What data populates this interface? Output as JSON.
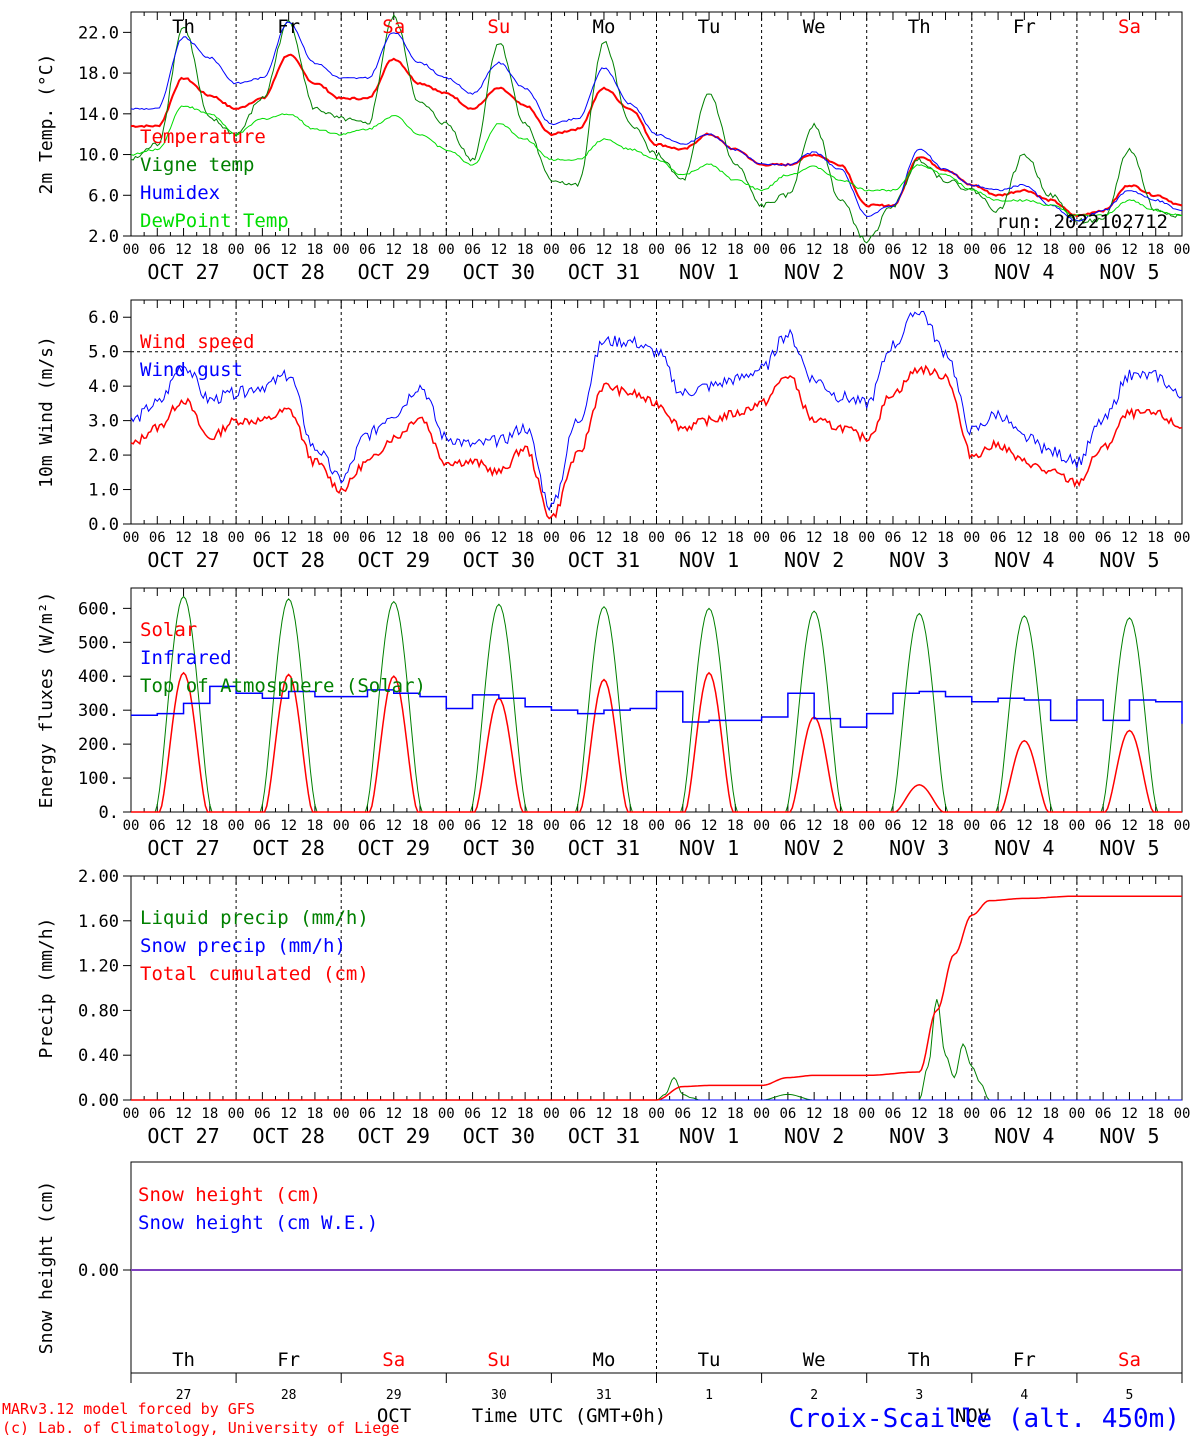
{
  "chart_data": [
    {
      "type": "line",
      "ylabel": "2m Temp. (°C)",
      "ylim": [
        2.0,
        24.0
      ],
      "yticks": [
        "2.0",
        "6.0",
        "10.0",
        "14.0",
        "18.0",
        "22.0"
      ],
      "x_hours": [
        0,
        6,
        12,
        18,
        24,
        30,
        36,
        42,
        48,
        54,
        60,
        66,
        72,
        78,
        84,
        90,
        96,
        102,
        108,
        114,
        120,
        126,
        132,
        138,
        144,
        150,
        156,
        162,
        168,
        174,
        180,
        186,
        192,
        198,
        204,
        210,
        216,
        222,
        228,
        234,
        240
      ],
      "series": [
        {
          "name": "Temperature",
          "color": "#ff0000",
          "values": [
            12.8,
            12.8,
            17.5,
            15.8,
            14.5,
            15.5,
            19.8,
            17.0,
            15.5,
            15.5,
            19.4,
            17.0,
            16.0,
            14.5,
            16.5,
            14.8,
            12.0,
            12.5,
            16.5,
            14.5,
            11.0,
            10.5,
            12.0,
            10.5,
            9.0,
            9.0,
            10.0,
            9.0,
            5.0,
            5.0,
            9.8,
            8.5,
            7.0,
            6.0,
            6.5,
            5.5,
            4.0,
            4.5,
            7.0,
            6.0,
            5.0
          ]
        },
        {
          "name": "Vigne temp",
          "color": "#008000",
          "values": [
            9.5,
            11.0,
            22.5,
            13.5,
            12.0,
            15.5,
            23.0,
            14.5,
            13.5,
            13.0,
            23.5,
            15.0,
            13.0,
            9.5,
            21.0,
            13.0,
            7.5,
            7.0,
            21.0,
            13.0,
            10.0,
            7.5,
            16.0,
            9.0,
            5.0,
            6.0,
            13.0,
            5.5,
            1.5,
            5.0,
            9.5,
            7.5,
            6.5,
            4.5,
            10.0,
            6.0,
            3.5,
            3.5,
            10.5,
            4.5,
            4.0
          ]
        },
        {
          "name": "Humidex",
          "color": "#0000ff",
          "values": [
            14.5,
            14.5,
            21.5,
            19.5,
            17.0,
            17.5,
            23.0,
            19.0,
            17.5,
            17.5,
            22.0,
            19.0,
            17.5,
            16.0,
            19.0,
            16.5,
            13.0,
            13.5,
            18.5,
            15.0,
            12.0,
            11.0,
            12.0,
            10.5,
            9.0,
            9.0,
            10.2,
            8.5,
            4.0,
            5.0,
            10.5,
            8.5,
            7.0,
            6.5,
            7.0,
            5.0,
            3.5,
            4.5,
            6.5,
            5.5,
            4.5
          ]
        },
        {
          "name": "DewPoint Temp",
          "color": "#00dd00",
          "values": [
            10.0,
            10.5,
            14.8,
            14.0,
            12.0,
            13.5,
            14.0,
            12.5,
            12.0,
            12.5,
            13.8,
            12.0,
            10.5,
            9.0,
            13.0,
            11.5,
            9.5,
            9.5,
            11.5,
            10.5,
            9.5,
            8.0,
            9.0,
            7.5,
            6.5,
            8.0,
            8.8,
            7.5,
            6.5,
            6.5,
            9.0,
            8.0,
            6.5,
            5.5,
            5.5,
            5.0,
            4.0,
            4.0,
            5.5,
            4.5,
            4.0
          ]
        }
      ],
      "legend": [
        "Temperature",
        "Vigne temp",
        "Humidex",
        "DewPoint Temp"
      ],
      "annotation": "run: 2022102712"
    },
    {
      "type": "line",
      "ylabel": "10m Wind (m/s)",
      "ylim": [
        0.0,
        6.5
      ],
      "yticks": [
        "0.0",
        "1.0",
        "2.0",
        "3.0",
        "4.0",
        "5.0",
        "6.0"
      ],
      "reference_line": 5.0,
      "x_hours": [
        0,
        6,
        12,
        18,
        24,
        30,
        36,
        42,
        48,
        54,
        60,
        66,
        72,
        78,
        84,
        90,
        96,
        102,
        108,
        114,
        120,
        126,
        132,
        138,
        144,
        150,
        156,
        162,
        168,
        174,
        180,
        186,
        192,
        198,
        204,
        210,
        216,
        222,
        228,
        234,
        240
      ],
      "series": [
        {
          "name": "Wind speed",
          "color": "#ff0000",
          "values": [
            2.3,
            2.8,
            3.6,
            2.5,
            3.0,
            3.0,
            3.3,
            1.8,
            1.0,
            1.8,
            2.5,
            3.1,
            1.8,
            1.8,
            1.5,
            2.2,
            0.2,
            2.0,
            4.0,
            3.8,
            3.5,
            2.8,
            3.0,
            3.2,
            3.5,
            4.3,
            3.0,
            2.8,
            2.5,
            3.8,
            4.5,
            4.3,
            2.0,
            2.3,
            1.8,
            1.5,
            1.2,
            2.2,
            3.2,
            3.2,
            2.8
          ]
        },
        {
          "name": "Wind gust",
          "color": "#0000ff",
          "values": [
            3.0,
            3.5,
            4.6,
            3.6,
            3.8,
            4.0,
            4.3,
            2.2,
            1.3,
            2.6,
            3.2,
            4.0,
            2.5,
            2.3,
            2.4,
            2.8,
            0.5,
            3.0,
            5.3,
            5.3,
            5.0,
            3.8,
            4.0,
            4.2,
            4.5,
            5.5,
            4.2,
            3.7,
            3.5,
            5.2,
            6.2,
            5.0,
            2.7,
            3.2,
            2.5,
            2.1,
            1.8,
            3.0,
            4.3,
            4.3,
            3.7
          ]
        }
      ],
      "legend": [
        "Wind speed",
        "Wind gust"
      ]
    },
    {
      "type": "line",
      "ylabel": "Energy fluxes (W/m²)",
      "ylim": [
        0,
        660
      ],
      "yticks": [
        "0.",
        "100.",
        "200.",
        "300.",
        "400.",
        "500.",
        "600."
      ],
      "series": [
        {
          "name": "Solar",
          "color": "#ff0000",
          "daily_peak_hour": 12,
          "daily_peaks": [
            410,
            405,
            400,
            335,
            390,
            410,
            280,
            80,
            210,
            240
          ]
        },
        {
          "name": "Top of Atmosphere (Solar)",
          "color": "#008000",
          "daily_peak_hour": 12,
          "daily_peaks": [
            635,
            628,
            620,
            612,
            605,
            600,
            592,
            585,
            578,
            572
          ]
        },
        {
          "name": "Infrared",
          "color": "#0000ff",
          "x_hours": [
            0,
            6,
            12,
            18,
            24,
            30,
            36,
            42,
            48,
            54,
            60,
            66,
            72,
            78,
            84,
            90,
            96,
            102,
            108,
            114,
            120,
            126,
            132,
            138,
            144,
            150,
            156,
            162,
            168,
            174,
            180,
            186,
            192,
            198,
            204,
            210,
            216,
            222,
            228,
            234,
            240
          ],
          "values": [
            285,
            290,
            320,
            370,
            350,
            335,
            355,
            340,
            340,
            360,
            350,
            340,
            305,
            345,
            335,
            310,
            300,
            290,
            300,
            305,
            355,
            265,
            270,
            270,
            280,
            350,
            275,
            250,
            290,
            350,
            355,
            340,
            325,
            335,
            330,
            270,
            330,
            270,
            330,
            325,
            260
          ]
        }
      ],
      "legend": [
        "Solar",
        "Infrared",
        "Top of Atmosphere (Solar)"
      ]
    },
    {
      "type": "line",
      "ylabel": "Precip (mm/h)",
      "ylim": [
        0.0,
        2.0
      ],
      "yticks": [
        "0.00",
        "0.40",
        "0.80",
        "1.20",
        "1.60",
        "2.00"
      ],
      "series": [
        {
          "name": "Liquid precip (mm/h)",
          "color": "#008000",
          "x_hours": [
            0,
            120,
            122,
            124,
            126,
            128,
            130,
            132,
            144,
            150,
            156,
            168,
            180,
            182,
            184,
            186,
            188,
            190,
            192,
            194,
            196,
            240
          ],
          "values": [
            0,
            0,
            0.05,
            0.2,
            0.05,
            0.02,
            0,
            0,
            0,
            0.05,
            0,
            0,
            0,
            0.3,
            0.9,
            0.4,
            0.2,
            0.5,
            0.3,
            0.15,
            0,
            0
          ]
        },
        {
          "name": "Snow precip (mm/h)",
          "color": "#0000ff",
          "x_hours": [
            0,
            240
          ],
          "values": [
            0,
            0
          ]
        },
        {
          "name": "Total cumulated (cm)",
          "color": "#ff0000",
          "x_hours": [
            0,
            120,
            126,
            132,
            144,
            150,
            156,
            168,
            180,
            184,
            188,
            192,
            196,
            204,
            216,
            240
          ],
          "values": [
            0,
            0,
            0.12,
            0.13,
            0.13,
            0.2,
            0.22,
            0.22,
            0.25,
            0.8,
            1.3,
            1.65,
            1.78,
            1.8,
            1.82,
            1.82
          ]
        }
      ],
      "legend": [
        "Liquid precip (mm/h)",
        "Snow precip (mm/h)",
        "Total cumulated (cm)"
      ]
    },
    {
      "type": "line",
      "ylabel": "Snow height (cm)",
      "yticks": [
        "0.00"
      ],
      "series": [
        {
          "name": "Snow height (cm)",
          "color": "#ff0000",
          "x_hours": [
            0,
            240
          ],
          "values": [
            0,
            0
          ]
        },
        {
          "name": "Snow height (cm W.E.)",
          "color": "#0000ff",
          "x_hours": [
            0,
            240
          ],
          "values": [
            0,
            0
          ]
        }
      ],
      "legend": [
        "Snow height (cm)",
        "Snow height (cm W.E.)"
      ]
    }
  ],
  "weekdays": [
    {
      "label": "Th",
      "color": "#000000"
    },
    {
      "label": "Fr",
      "color": "#000000"
    },
    {
      "label": "Sa",
      "color": "#ff0000"
    },
    {
      "label": "Su",
      "color": "#ff0000"
    },
    {
      "label": "Mo",
      "color": "#000000"
    },
    {
      "label": "Tu",
      "color": "#000000"
    },
    {
      "label": "We",
      "color": "#000000"
    },
    {
      "label": "Th",
      "color": "#000000"
    },
    {
      "label": "Fr",
      "color": "#000000"
    },
    {
      "label": "Sa",
      "color": "#ff0000"
    }
  ],
  "date_labels": [
    "OCT 27",
    "OCT 28",
    "OCT 29",
    "OCT 30",
    "OCT 31",
    "NOV  1",
    "NOV  2",
    "NOV  3",
    "NOV  4",
    "NOV  5"
  ],
  "hour_ticks": [
    "00",
    "06",
    "12",
    "18"
  ],
  "last_hour_tick": "00",
  "day_numbers": [
    "27",
    "28",
    "29",
    "30",
    "31",
    "1",
    "2",
    "3",
    "4",
    "5"
  ],
  "bottom": {
    "month_oct": "OCT",
    "time_label": "Time UTC (GMT+0h)",
    "month_nov": "NOV",
    "credit_line1": "MARv3.12 model forced by GFS",
    "credit_line2": "(c) Lab. of Climatology, University of Liege",
    "station": "Croix-Scaille (alt. 450m)",
    "station_color": "#0000ff"
  }
}
